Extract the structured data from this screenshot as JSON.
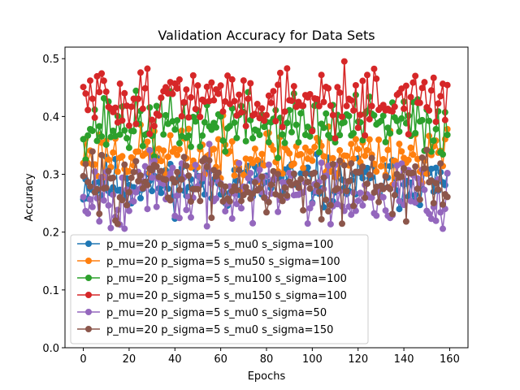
{
  "chart_data": {
    "type": "line",
    "title": "Validation Accuracy for Data Sets",
    "xlabel": "Epochs",
    "ylabel": "Accuracy",
    "xlim": [
      -8,
      168
    ],
    "ylim": [
      0.0,
      0.52
    ],
    "xticks": [
      0,
      20,
      40,
      60,
      80,
      100,
      120,
      140,
      160
    ],
    "yticks": [
      0.0,
      0.1,
      0.2,
      0.3,
      0.4,
      0.5
    ],
    "ytick_labels": [
      "0.0",
      "0.1",
      "0.2",
      "0.3",
      "0.4",
      "0.5"
    ],
    "grid": false,
    "markers": true,
    "legend_position": "lower-left",
    "series": [
      {
        "name": "p_mu=20 p_sigma=5 s_mu0 s_sigma=100",
        "color": "#1f77b4",
        "center": 0.285,
        "amp": 0.03,
        "seed": 11
      },
      {
        "name": "p_mu=20 p_sigma=5 s_mu50 s_sigma=100",
        "color": "#ff7f0e",
        "center": 0.335,
        "amp": 0.032,
        "seed": 23
      },
      {
        "name": "p_mu=20 p_sigma=5 s_mu100 s_sigma=100",
        "color": "#2ca02c",
        "center": 0.385,
        "amp": 0.035,
        "seed": 37
      },
      {
        "name": "p_mu=20 p_sigma=5 s_mu150 s_sigma=100",
        "color": "#d62728",
        "center": 0.43,
        "amp": 0.035,
        "seed": 51
      },
      {
        "name": "p_mu=20 p_sigma=5 s_mu0 s_sigma=50",
        "color": "#9467bd",
        "center": 0.272,
        "amp": 0.04,
        "seed": 67
      },
      {
        "name": "p_mu=20 p_sigma=5 s_mu0 s_sigma=150",
        "color": "#8c564b",
        "center": 0.285,
        "amp": 0.035,
        "seed": 83
      }
    ],
    "epochs": 160
  }
}
